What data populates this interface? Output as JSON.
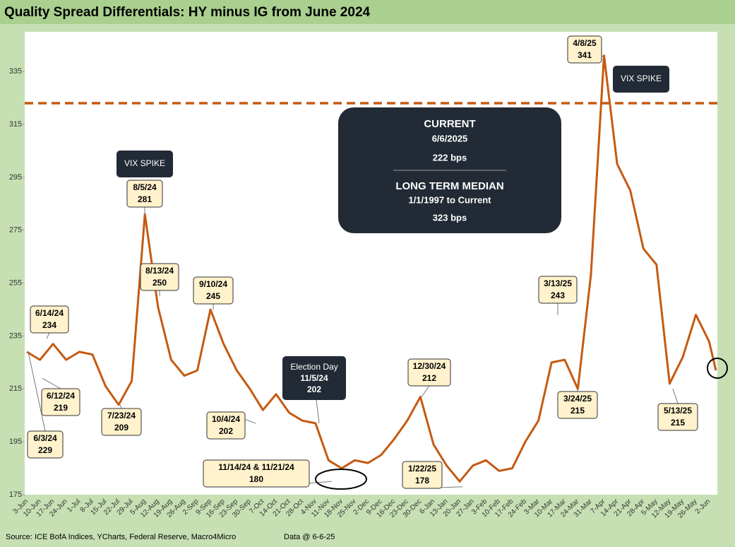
{
  "chart_data": {
    "type": "line",
    "title": "Quality Spread Differentials: HY minus IG from June 2024",
    "categories": [
      "3-Jun",
      "10-Jun",
      "17-Jun",
      "24-Jun",
      "1-Jul",
      "8-Jul",
      "15-Jul",
      "22-Jul",
      "29-Jul",
      "5-Aug",
      "12-Aug",
      "19-Aug",
      "26-Aug",
      "2-Sep",
      "9-Sep",
      "16-Sep",
      "23-Sep",
      "30-Sep",
      "7-Oct",
      "14-Oct",
      "21-Oct",
      "28-Oct",
      "4-Nov",
      "11-Nov",
      "18-Nov",
      "25-Nov",
      "2-Dec",
      "9-Dec",
      "16-Dec",
      "23-Dec",
      "30-Dec",
      "6-Jan",
      "13-Jan",
      "20-Jan",
      "27-Jan",
      "3-Feb",
      "10-Feb",
      "17-Feb",
      "24-Feb",
      "3-Mar",
      "10-Mar",
      "17-Mar",
      "24-Mar",
      "31-Mar",
      "7-Apr",
      "14-Apr",
      "21-Apr",
      "28-Apr",
      "5-May",
      "12-May",
      "19-May",
      "26-May",
      "2-Jun",
      null
    ],
    "values": [
      229,
      226,
      232,
      226,
      229,
      228,
      216,
      209,
      218,
      281,
      246,
      226,
      220,
      222,
      245,
      232,
      222,
      215,
      207,
      213,
      206,
      203,
      202,
      188,
      185,
      188,
      187,
      190,
      196,
      203,
      212,
      194,
      186,
      180,
      186,
      188,
      184,
      185,
      195,
      203,
      225,
      226,
      215,
      258,
      341,
      300,
      290,
      268,
      262,
      217,
      227,
      243,
      233,
      222
    ],
    "color": "#c55a11",
    "ylim": [
      175,
      350
    ],
    "yticks": [
      175,
      195,
      215,
      235,
      255,
      275,
      295,
      315,
      335
    ],
    "median_line": {
      "value": 323,
      "label": "323 bps"
    },
    "annotations": [
      {
        "date": "6/14/24",
        "value": 234
      },
      {
        "date": "6/12/24",
        "value": 219
      },
      {
        "date": "6/3/24",
        "value": 229
      },
      {
        "date": "7/23/24",
        "value": 209
      },
      {
        "date": "8/5/24",
        "value": 281
      },
      {
        "date": "8/13/24",
        "value": 250
      },
      {
        "date": "9/10/24",
        "value": 245
      },
      {
        "date": "10/4/24",
        "value": 202
      },
      {
        "date": "11/14/24 & 11/21/24",
        "value": 180
      },
      {
        "date": "12/30/24",
        "value": 212
      },
      {
        "date": "1/22/25",
        "value": 178
      },
      {
        "date": "3/13/25",
        "value": 243
      },
      {
        "date": "3/24/25",
        "value": 215
      },
      {
        "date": "4/8/25",
        "value": 341
      },
      {
        "date": "5/13/25",
        "value": 215
      }
    ],
    "vix_labels": [
      "VIX SPIKE",
      "VIX SPIKE"
    ],
    "election": {
      "title": "Election Day",
      "date": "11/5/24",
      "value": 202
    },
    "info_box": {
      "current_title": "CURRENT",
      "current_date": "6/6/2025",
      "current_value": "222 bps",
      "median_title": "LONG TERM MEDIAN",
      "median_period": "1/1/1997 to Current"
    },
    "source": "Source: ICE BofA Indices, YCharts, Federal Reserve, Macro4Micro",
    "data_date": "Data @ 6-6-25"
  }
}
